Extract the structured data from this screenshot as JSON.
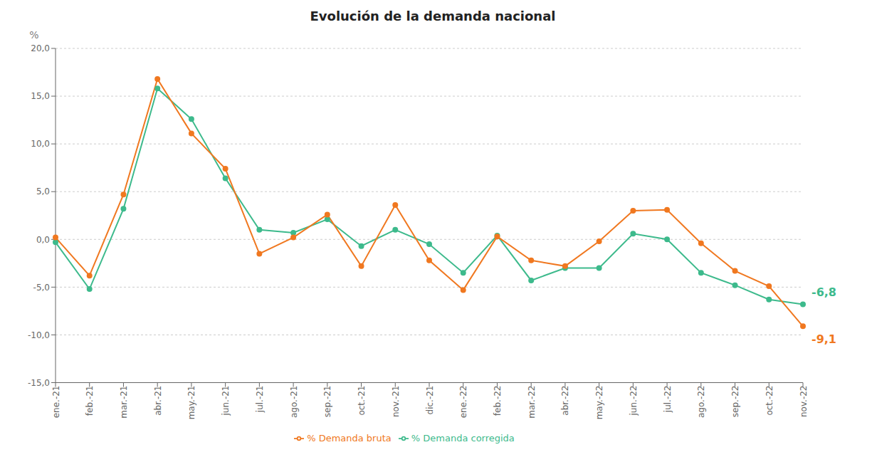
{
  "chart_data": {
    "type": "line",
    "title": "Evolución de la demanda nacional",
    "y_label": "%",
    "categories": [
      "ene.-21",
      "feb.-21",
      "mar.-21",
      "abr.-21",
      "may.-21",
      "jun.-21",
      "jul.-21",
      "ago.-21",
      "sep.-21",
      "oct.-21",
      "nov.-21",
      "dic.-21",
      "ene.-22",
      "feb.-22",
      "mar.-22",
      "abr.-22",
      "may.-22",
      "jun.-22",
      "jul.-22",
      "ago.-22",
      "sep.-22",
      "oct.-22",
      "nov.-22"
    ],
    "series": [
      {
        "name": "% Demanda corregida",
        "color": "#3dba8c",
        "marker": "circle",
        "values": [
          -0.3,
          -5.2,
          3.2,
          15.8,
          12.6,
          6.4,
          1.0,
          0.7,
          2.1,
          -0.7,
          1.0,
          -0.5,
          -3.5,
          0.4,
          -4.3,
          -3.0,
          -3.0,
          0.6,
          0.0,
          -3.5,
          -4.8,
          -6.3,
          -6.8
        ]
      },
      {
        "name": "% Demanda bruta",
        "color": "#f07820",
        "marker": "circle",
        "values": [
          0.2,
          -3.8,
          4.7,
          16.8,
          11.1,
          7.4,
          -1.5,
          0.2,
          2.6,
          -2.8,
          3.6,
          -2.2,
          -5.3,
          0.3,
          -2.2,
          -2.8,
          -0.2,
          3.0,
          3.1,
          -0.4,
          -3.3,
          -4.9,
          -9.1
        ]
      }
    ],
    "ylim": [
      -15,
      20
    ],
    "yticks": [
      {
        "value": -15,
        "label": "-15,0"
      },
      {
        "value": -10,
        "label": "-10,0"
      },
      {
        "value": -5,
        "label": "-5,0"
      },
      {
        "value": 0,
        "label": "0,0"
      },
      {
        "value": 5,
        "label": "5,0"
      },
      {
        "value": 10,
        "label": "10,0"
      },
      {
        "value": 15,
        "label": "15,0"
      },
      {
        "value": 20,
        "label": "20,0"
      }
    ],
    "grid": true,
    "legend": "bottom",
    "annotations": [
      {
        "text": "-6,8",
        "x": "nov.-22",
        "y": -6.8,
        "series": "% Demanda corregida"
      },
      {
        "text": "-9,1",
        "x": "nov.-22",
        "y": -9.1,
        "series": "% Demanda bruta"
      }
    ]
  }
}
